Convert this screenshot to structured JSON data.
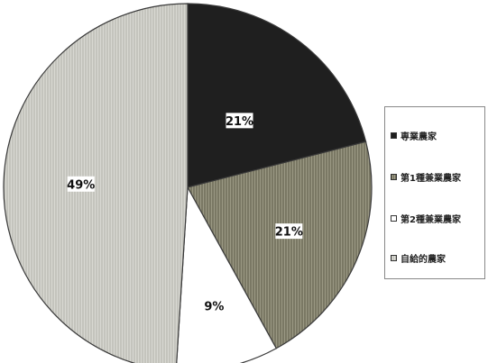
{
  "chart_data": {
    "type": "pie",
    "title": "",
    "start_angle_deg": 0,
    "direction": "clockwise",
    "legend_position": "right",
    "slices": [
      {
        "name": "専業農家",
        "value": 21,
        "label": "21%",
        "color": "#1f1f1f",
        "pattern": "solid"
      },
      {
        "name": "第1種兼業農家",
        "value": 21,
        "label": "21%",
        "color": "#84826f",
        "pattern": "vertical-lines"
      },
      {
        "name": "第2種兼業農家",
        "value": 9,
        "label": "9%",
        "color": "#ffffff",
        "pattern": "none"
      },
      {
        "name": "自給的農家",
        "value": 49,
        "label": "49%",
        "color": "#c9c9c2",
        "pattern": "vertical-lines"
      }
    ]
  }
}
